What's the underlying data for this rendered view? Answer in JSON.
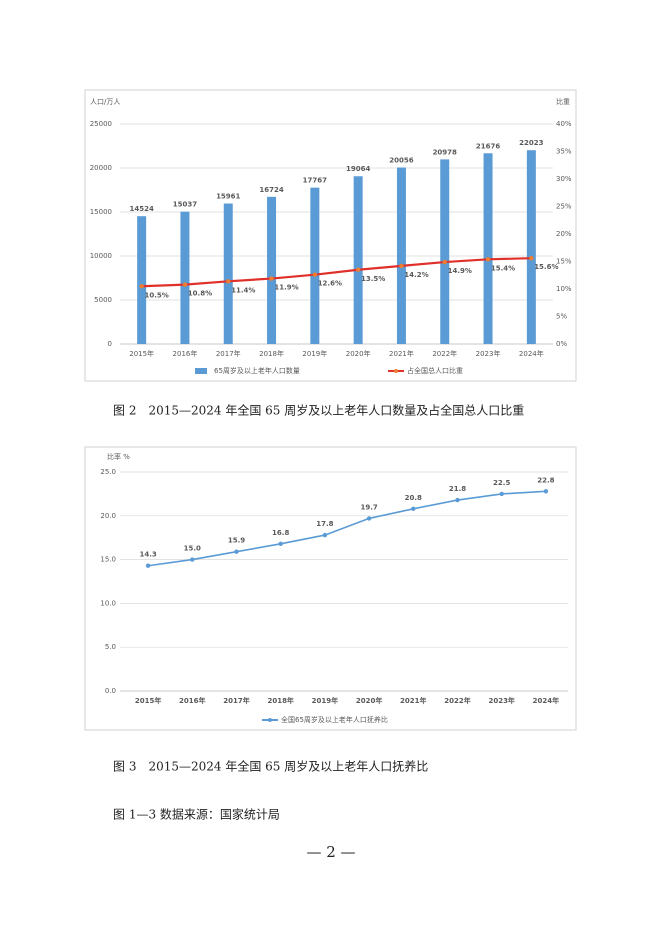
{
  "chart_data": [
    {
      "type": "bar",
      "y_label": "人口/万人",
      "y2_label": "比重",
      "categories": [
        "2015年",
        "2016年",
        "2017年",
        "2018年",
        "2019年",
        "2020年",
        "2021年",
        "2022年",
        "2023年",
        "2024年"
      ],
      "series": [
        {
          "name": "65周岁及以上老年人口数量",
          "color": "#5b9bd5",
          "values": [
            14524,
            15037,
            15961,
            16724,
            17767,
            19064,
            20056,
            20978,
            21676,
            22023
          ]
        },
        {
          "name": "占全国总人口比重",
          "type": "line",
          "axis": "y2",
          "color": "#e0302a",
          "marker_color": "#ed7d31",
          "values": [
            10.5,
            10.8,
            11.4,
            11.9,
            12.6,
            13.5,
            14.2,
            14.9,
            15.4,
            15.6
          ],
          "value_labels": [
            "10.5%",
            "10.8%",
            "11.4%",
            "11.9%",
            "12.6%",
            "13.5%",
            "14.2%",
            "14.9%",
            "15.4%",
            "15.6%"
          ]
        }
      ],
      "ylim": [
        0,
        25000
      ],
      "yticks": [
        0,
        5000,
        10000,
        15000,
        20000,
        25000
      ],
      "y2lim": [
        0,
        40
      ],
      "y2ticks": [
        {
          "value": 0,
          "label": "0%"
        },
        {
          "value": 5,
          "label": "5%"
        },
        {
          "value": 10,
          "label": "10%"
        },
        {
          "value": 15,
          "label": "15%"
        },
        {
          "value": 20,
          "label": "20%"
        },
        {
          "value": 25,
          "label": "25%"
        },
        {
          "value": 30,
          "label": "30%"
        },
        {
          "value": 35,
          "label": "35%"
        },
        {
          "value": 40,
          "label": "40%"
        }
      ],
      "grid": true,
      "legend": "bottom"
    },
    {
      "type": "line",
      "y_label": "比率 %",
      "categories": [
        "2015年",
        "2016年",
        "2017年",
        "2018年",
        "2019年",
        "2020年",
        "2021年",
        "2022年",
        "2023年",
        "2024年"
      ],
      "series": [
        {
          "name": "全国65周岁及以上老年人口抚养比",
          "color": "#5b9bd5",
          "values": [
            14.3,
            15.0,
            15.9,
            16.8,
            17.8,
            19.7,
            20.8,
            21.8,
            22.5,
            22.8
          ],
          "value_labels": [
            "14.3",
            "15.0",
            "15.9",
            "16.8",
            "17.8",
            "19.7",
            "20.8",
            "21.8",
            "22.5",
            "22.8"
          ]
        }
      ],
      "ylim": [
        0,
        25
      ],
      "yticks": [
        {
          "value": 0,
          "label": "0.0"
        },
        {
          "value": 5,
          "label": "5.0"
        },
        {
          "value": 10,
          "label": "10.0"
        },
        {
          "value": 15,
          "label": "15.0"
        },
        {
          "value": 20,
          "label": "20.0"
        },
        {
          "value": 25,
          "label": "25.0"
        }
      ],
      "grid": true,
      "legend": "bottom"
    }
  ],
  "captions": [
    "图 2　2015—2024 年全国 65 周岁及以上老年人口数量及占全国总人口比重",
    "图 3　2015—2024 年全国 65 周岁及以上老年人口抚养比"
  ],
  "source": "图 1—3 数据来源：国家统计局",
  "page_number": "— 2 —"
}
